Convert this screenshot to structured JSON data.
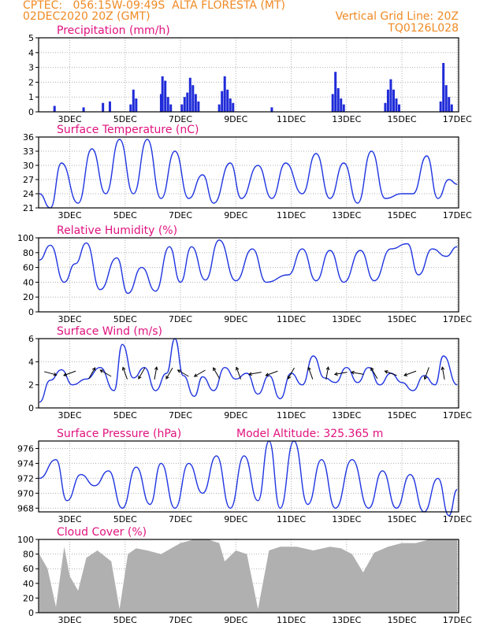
{
  "header": {
    "line1_left": "CPTEC:   056:15W-09:49S  ALTA FLORESTA (MT)",
    "line2_left": "02DEC2020 20Z (GMT)",
    "line2_right": "Vertical Grid Line: 20Z",
    "line3_right": "TQ0126L028"
  },
  "colors": {
    "title": "#e0127e",
    "header": "#f08a24",
    "line": "#1f35e0",
    "bar": "#1f2bd8",
    "cloud": "#b0b0b0",
    "grid": "#b0b0b0"
  },
  "x_axis": {
    "ticks": [
      {
        "label": "3DEC",
        "day": 3
      },
      {
        "label": "5DEC",
        "day": 5
      },
      {
        "label": "7DEC",
        "day": 7
      },
      {
        "label": "9DEC",
        "day": 9
      },
      {
        "label": "11DEC",
        "day": 11
      },
      {
        "label": "13DEC",
        "day": 13
      },
      {
        "label": "15DEC",
        "day": 15
      },
      {
        "label": "17DEC",
        "day": 17
      }
    ]
  },
  "chart_data": [
    {
      "type": "bar",
      "title": "Precipitation (mm/h)",
      "ylim": [
        0,
        5
      ],
      "yticks": [
        0,
        1,
        2,
        3,
        4,
        5
      ],
      "points": [
        [
          2.45,
          0.4
        ],
        [
          3.5,
          0.3
        ],
        [
          4.2,
          0.6
        ],
        [
          4.45,
          0.7
        ],
        [
          5.2,
          0.5
        ],
        [
          5.3,
          1.5
        ],
        [
          5.4,
          0.9
        ],
        [
          6.3,
          1.2
        ],
        [
          6.35,
          2.4
        ],
        [
          6.45,
          2.1
        ],
        [
          6.55,
          1.0
        ],
        [
          6.65,
          0.5
        ],
        [
          7.05,
          0.5
        ],
        [
          7.15,
          1.0
        ],
        [
          7.25,
          1.3
        ],
        [
          7.35,
          2.3
        ],
        [
          7.45,
          1.8
        ],
        [
          7.55,
          1.2
        ],
        [
          7.65,
          0.7
        ],
        [
          8.4,
          0.5
        ],
        [
          8.5,
          1.4
        ],
        [
          8.6,
          2.4
        ],
        [
          8.7,
          1.5
        ],
        [
          8.8,
          0.9
        ],
        [
          8.9,
          0.6
        ],
        [
          10.3,
          0.3
        ],
        [
          12.5,
          1.2
        ],
        [
          12.6,
          2.7
        ],
        [
          12.7,
          1.6
        ],
        [
          12.8,
          0.9
        ],
        [
          12.9,
          0.5
        ],
        [
          14.4,
          0.6
        ],
        [
          14.5,
          1.5
        ],
        [
          14.6,
          2.2
        ],
        [
          14.7,
          1.5
        ],
        [
          14.8,
          0.9
        ],
        [
          14.9,
          0.5
        ],
        [
          16.4,
          0.7
        ],
        [
          16.5,
          3.3
        ],
        [
          16.6,
          1.8
        ],
        [
          16.7,
          1.0
        ],
        [
          16.8,
          0.5
        ]
      ]
    },
    {
      "type": "line",
      "title": "Surface Temperature (nC)",
      "ylim": [
        21,
        36
      ],
      "yticks": [
        21,
        24,
        27,
        30,
        33,
        36
      ],
      "points": [
        [
          1.9,
          24.0
        ],
        [
          2.3,
          21.0
        ],
        [
          2.7,
          30.5
        ],
        [
          3.3,
          22.0
        ],
        [
          3.8,
          33.5
        ],
        [
          4.3,
          24.0
        ],
        [
          4.8,
          35.5
        ],
        [
          5.3,
          24.0
        ],
        [
          5.8,
          35.5
        ],
        [
          6.3,
          23.0
        ],
        [
          6.8,
          33.0
        ],
        [
          7.3,
          23.0
        ],
        [
          7.8,
          28.0
        ],
        [
          8.2,
          22.0
        ],
        [
          8.8,
          30.5
        ],
        [
          9.2,
          23.0
        ],
        [
          9.8,
          30.0
        ],
        [
          10.3,
          23.0
        ],
        [
          10.8,
          30.5
        ],
        [
          11.4,
          24.0
        ],
        [
          11.9,
          32.5
        ],
        [
          12.4,
          23.0
        ],
        [
          12.9,
          30.5
        ],
        [
          13.4,
          22.0
        ],
        [
          13.9,
          33.0
        ],
        [
          14.4,
          23.0
        ],
        [
          15.0,
          24.0
        ],
        [
          15.4,
          24.0
        ],
        [
          15.9,
          32.0
        ],
        [
          16.3,
          23.0
        ],
        [
          16.7,
          27.0
        ],
        [
          17.0,
          26.0
        ]
      ]
    },
    {
      "type": "line",
      "title": "Relative Humidity (%)",
      "ylim": [
        0,
        100
      ],
      "yticks": [
        0,
        20,
        40,
        60,
        80,
        100
      ],
      "points": [
        [
          1.9,
          70
        ],
        [
          2.3,
          90
        ],
        [
          2.8,
          40
        ],
        [
          3.2,
          65
        ],
        [
          3.6,
          93
        ],
        [
          4.1,
          30
        ],
        [
          4.7,
          73
        ],
        [
          5.1,
          25
        ],
        [
          5.6,
          60
        ],
        [
          6.1,
          28
        ],
        [
          6.6,
          88
        ],
        [
          7.0,
          40
        ],
        [
          7.4,
          88
        ],
        [
          7.9,
          43
        ],
        [
          8.4,
          97
        ],
        [
          9.0,
          42
        ],
        [
          9.6,
          85
        ],
        [
          10.1,
          40
        ],
        [
          10.9,
          50
        ],
        [
          11.4,
          85
        ],
        [
          11.9,
          42
        ],
        [
          12.4,
          83
        ],
        [
          12.9,
          40
        ],
        [
          13.5,
          83
        ],
        [
          14.0,
          42
        ],
        [
          14.6,
          85
        ],
        [
          15.2,
          92
        ],
        [
          15.6,
          50
        ],
        [
          16.1,
          85
        ],
        [
          16.6,
          75
        ],
        [
          17.0,
          88
        ]
      ]
    },
    {
      "type": "line",
      "title": "Surface Wind (m/s)",
      "ylim": [
        0,
        6
      ],
      "yticks": [
        0,
        2,
        4,
        6
      ],
      "points": [
        [
          1.9,
          0.5
        ],
        [
          2.3,
          2.4
        ],
        [
          2.7,
          3.3
        ],
        [
          3.1,
          2.0
        ],
        [
          3.6,
          2.5
        ],
        [
          4.1,
          3.5
        ],
        [
          4.6,
          1.5
        ],
        [
          4.9,
          5.5
        ],
        [
          5.3,
          2.6
        ],
        [
          5.7,
          3.5
        ],
        [
          6.1,
          1.5
        ],
        [
          6.5,
          3.0
        ],
        [
          6.8,
          6.0
        ],
        [
          7.1,
          2.8
        ],
        [
          7.5,
          1.0
        ],
        [
          7.8,
          2.7
        ],
        [
          8.2,
          1.5
        ],
        [
          8.6,
          3.5
        ],
        [
          9.0,
          2.5
        ],
        [
          9.4,
          3.0
        ],
        [
          9.8,
          1.2
        ],
        [
          10.2,
          2.8
        ],
        [
          10.6,
          0.8
        ],
        [
          11.0,
          3.0
        ],
        [
          11.4,
          2.0
        ],
        [
          11.8,
          4.5
        ],
        [
          12.2,
          2.6
        ],
        [
          12.6,
          2.2
        ],
        [
          13.0,
          3.5
        ],
        [
          13.4,
          2.2
        ],
        [
          13.8,
          3.5
        ],
        [
          14.2,
          2.0
        ],
        [
          14.6,
          3.0
        ],
        [
          15.0,
          2.2
        ],
        [
          15.4,
          1.5
        ],
        [
          15.8,
          2.8
        ],
        [
          16.2,
          2.0
        ],
        [
          16.5,
          4.5
        ],
        [
          17.0,
          2.0
        ]
      ],
      "arrows": [
        [
          2.3,
          -15
        ],
        [
          3.0,
          200
        ],
        [
          3.8,
          60
        ],
        [
          4.3,
          150
        ],
        [
          5.0,
          110
        ],
        [
          5.6,
          240
        ],
        [
          6.1,
          80
        ],
        [
          6.6,
          240
        ],
        [
          7.1,
          150
        ],
        [
          7.7,
          210
        ],
        [
          8.3,
          120
        ],
        [
          9.1,
          110
        ],
        [
          9.7,
          190
        ],
        [
          10.3,
          200
        ],
        [
          11.0,
          240
        ],
        [
          11.7,
          110
        ],
        [
          12.3,
          80
        ],
        [
          12.8,
          190
        ],
        [
          13.4,
          170
        ],
        [
          14.0,
          120
        ],
        [
          14.6,
          160
        ],
        [
          15.3,
          200
        ],
        [
          15.9,
          250
        ],
        [
          16.5,
          100
        ]
      ]
    },
    {
      "type": "line",
      "title": "Surface Pressure (hPa)",
      "annotation": "Model Altitude: 325.365 m",
      "ylim": [
        967.5,
        977
      ],
      "yticks": [
        968,
        970,
        972,
        974,
        976
      ],
      "points": [
        [
          1.9,
          972.0
        ],
        [
          2.5,
          974.5
        ],
        [
          2.9,
          969.0
        ],
        [
          3.4,
          972.5
        ],
        [
          3.9,
          971.0
        ],
        [
          4.4,
          973.0
        ],
        [
          4.9,
          968.0
        ],
        [
          5.4,
          973.5
        ],
        [
          5.9,
          968.5
        ],
        [
          6.3,
          974.0
        ],
        [
          6.8,
          968.0
        ],
        [
          7.3,
          974.0
        ],
        [
          7.8,
          970.0
        ],
        [
          8.3,
          975.0
        ],
        [
          8.8,
          968.0
        ],
        [
          9.3,
          975.0
        ],
        [
          9.8,
          969.0
        ],
        [
          10.2,
          977.0
        ],
        [
          10.6,
          968.0
        ],
        [
          11.1,
          977.0
        ],
        [
          11.6,
          968.5
        ],
        [
          12.1,
          974.5
        ],
        [
          12.6,
          968.0
        ],
        [
          13.2,
          974.5
        ],
        [
          13.8,
          968.0
        ],
        [
          14.3,
          973.0
        ],
        [
          14.8,
          968.0
        ],
        [
          15.3,
          972.5
        ],
        [
          15.8,
          967.5
        ],
        [
          16.3,
          972.0
        ],
        [
          16.7,
          967.0
        ],
        [
          17.0,
          970.5
        ]
      ]
    },
    {
      "type": "area",
      "title": "Cloud Cover (%)",
      "ylim": [
        0,
        100
      ],
      "yticks": [
        0,
        20,
        40,
        60,
        80,
        100
      ],
      "points": [
        [
          1.9,
          80
        ],
        [
          2.2,
          60
        ],
        [
          2.5,
          8
        ],
        [
          2.8,
          90
        ],
        [
          3.0,
          50
        ],
        [
          3.3,
          30
        ],
        [
          3.6,
          75
        ],
        [
          4.0,
          85
        ],
        [
          4.5,
          70
        ],
        [
          4.8,
          5
        ],
        [
          5.1,
          80
        ],
        [
          5.4,
          88
        ],
        [
          5.8,
          85
        ],
        [
          6.3,
          80
        ],
        [
          7.0,
          95
        ],
        [
          7.5,
          100
        ],
        [
          8.0,
          100
        ],
        [
          8.4,
          95
        ],
        [
          8.6,
          70
        ],
        [
          9.0,
          85
        ],
        [
          9.4,
          80
        ],
        [
          9.8,
          5
        ],
        [
          10.2,
          85
        ],
        [
          10.6,
          90
        ],
        [
          11.2,
          90
        ],
        [
          11.8,
          85
        ],
        [
          12.4,
          90
        ],
        [
          12.8,
          88
        ],
        [
          13.2,
          80
        ],
        [
          13.6,
          55
        ],
        [
          14.0,
          82
        ],
        [
          14.5,
          90
        ],
        [
          15.0,
          95
        ],
        [
          15.5,
          95
        ],
        [
          16.0,
          100
        ],
        [
          16.5,
          100
        ],
        [
          17.0,
          100
        ]
      ]
    }
  ]
}
